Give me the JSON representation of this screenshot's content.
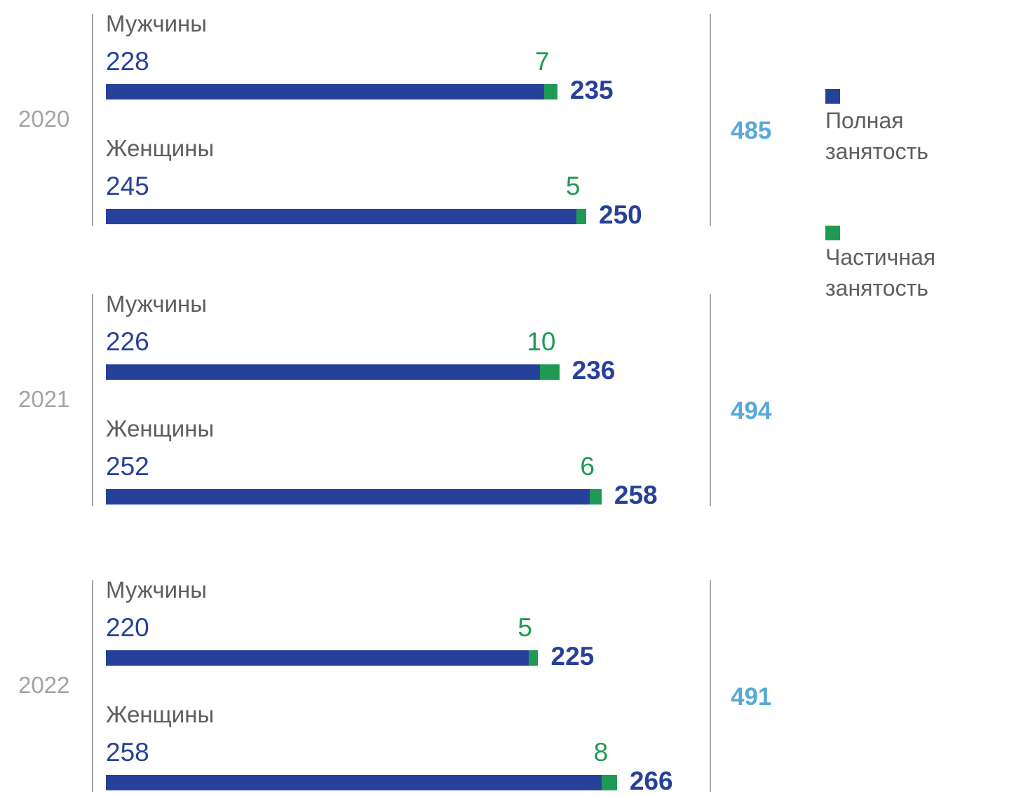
{
  "chart_data": {
    "type": "bar",
    "orientation": "horizontal",
    "stacked": true,
    "series": [
      {
        "name": "Полная занятость",
        "color": "#27419a"
      },
      {
        "name": "Частичная занятость",
        "color": "#1f9a54"
      }
    ],
    "groups": [
      {
        "year": "2020",
        "total": "485",
        "rows": [
          {
            "label": "Мужчины",
            "full": 228,
            "part": 7,
            "total": 235
          },
          {
            "label": "Женщины",
            "full": 245,
            "part": 5,
            "total": 250
          }
        ]
      },
      {
        "year": "2021",
        "total": "494",
        "rows": [
          {
            "label": "Мужчины",
            "full": 226,
            "part": 10,
            "total": 236
          },
          {
            "label": "Женщины",
            "full": 252,
            "part": 6,
            "total": 258
          }
        ]
      },
      {
        "year": "2022",
        "total": "491",
        "rows": [
          {
            "label": "Мужчины",
            "full": 220,
            "part": 5,
            "total": 225
          },
          {
            "label": "Женщины",
            "full": 258,
            "part": 8,
            "total": 266
          }
        ]
      }
    ],
    "legend": {
      "position": "right",
      "items": [
        {
          "label": "Полная занятость",
          "color": "#27419a"
        },
        {
          "label": "Частичная занятость",
          "color": "#1f9a54"
        }
      ]
    },
    "grid": false
  }
}
